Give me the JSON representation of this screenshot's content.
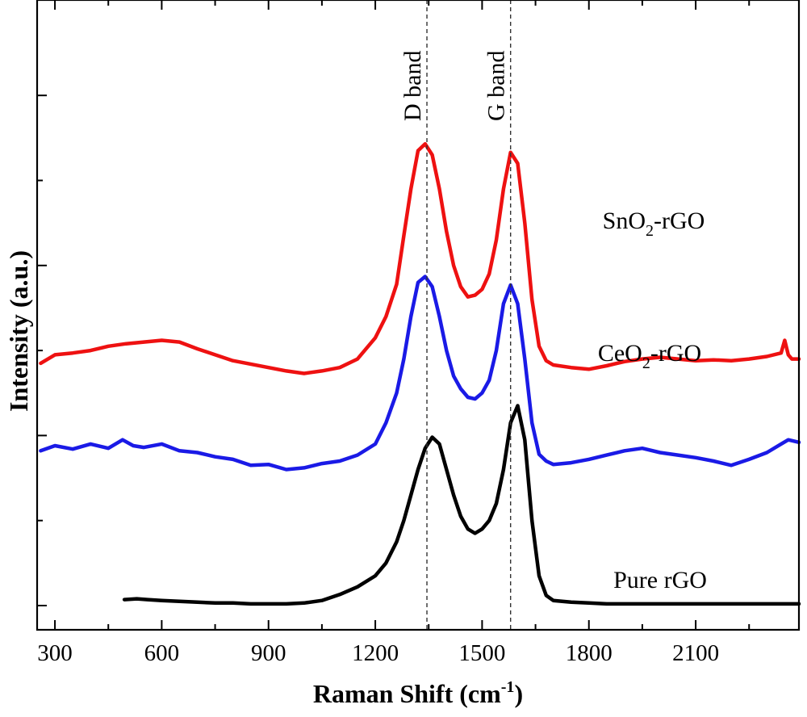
{
  "chart_data": {
    "type": "line",
    "xlabel_main": "Raman Shift (cm",
    "xlabel_sup": "-1",
    "xlabel_end": ")",
    "ylabel": "Intensity (a.u.)",
    "xlim": [
      250,
      2390
    ],
    "ylim": [
      0,
      6.6
    ],
    "xticks": [
      300,
      600,
      900,
      1200,
      1500,
      1800,
      2100
    ],
    "x_minor_ticks": [
      450,
      750,
      1050,
      1350,
      1650,
      1950,
      2250
    ],
    "y_ticks": [
      0,
      1,
      2,
      3,
      4,
      5,
      6
    ],
    "grid": false,
    "reference_lines": [
      {
        "label": "D band",
        "x": 1345
      },
      {
        "label": "G band",
        "x": 1580
      }
    ],
    "series": [
      {
        "name_main": "SnO",
        "name_sub": "2",
        "name_end": "-rGO",
        "color": "#ee1111",
        "x": [
          260,
          300,
          350,
          400,
          450,
          500,
          550,
          600,
          650,
          700,
          750,
          800,
          850,
          900,
          950,
          1000,
          1050,
          1100,
          1150,
          1200,
          1230,
          1260,
          1280,
          1300,
          1320,
          1340,
          1360,
          1380,
          1400,
          1420,
          1440,
          1460,
          1480,
          1500,
          1520,
          1540,
          1560,
          1580,
          1600,
          1620,
          1640,
          1660,
          1680,
          1700,
          1750,
          1800,
          1850,
          1900,
          1950,
          2000,
          2050,
          2100,
          2150,
          2200,
          2250,
          2300,
          2340,
          2350,
          2360,
          2370,
          2390
        ],
        "y": [
          2.85,
          2.95,
          2.97,
          3.0,
          3.05,
          3.08,
          3.1,
          3.12,
          3.1,
          3.02,
          2.95,
          2.88,
          2.84,
          2.8,
          2.76,
          2.73,
          2.76,
          2.8,
          2.9,
          3.15,
          3.4,
          3.78,
          4.35,
          4.9,
          5.35,
          5.43,
          5.3,
          4.9,
          4.4,
          4.0,
          3.75,
          3.63,
          3.65,
          3.72,
          3.9,
          4.3,
          4.9,
          5.33,
          5.2,
          4.5,
          3.6,
          3.05,
          2.88,
          2.83,
          2.8,
          2.78,
          2.82,
          2.87,
          2.9,
          2.92,
          2.9,
          2.88,
          2.89,
          2.88,
          2.9,
          2.93,
          2.97,
          3.12,
          2.95,
          2.9,
          2.9
        ]
      },
      {
        "name_main": "CeO",
        "name_sub": "2",
        "name_end": "-rGO",
        "color": "#1a1ae6",
        "x": [
          260,
          300,
          350,
          400,
          450,
          490,
          520,
          550,
          600,
          650,
          700,
          750,
          800,
          850,
          900,
          950,
          1000,
          1050,
          1100,
          1150,
          1200,
          1230,
          1260,
          1280,
          1300,
          1320,
          1340,
          1360,
          1380,
          1400,
          1420,
          1440,
          1460,
          1480,
          1500,
          1520,
          1540,
          1560,
          1580,
          1600,
          1620,
          1640,
          1660,
          1680,
          1700,
          1750,
          1800,
          1850,
          1900,
          1950,
          2000,
          2050,
          2100,
          2150,
          2200,
          2250,
          2300,
          2340,
          2360,
          2390
        ],
        "y": [
          1.82,
          1.88,
          1.84,
          1.9,
          1.85,
          1.95,
          1.88,
          1.86,
          1.9,
          1.82,
          1.8,
          1.75,
          1.72,
          1.65,
          1.66,
          1.6,
          1.62,
          1.67,
          1.7,
          1.77,
          1.9,
          2.15,
          2.5,
          2.9,
          3.4,
          3.8,
          3.87,
          3.75,
          3.4,
          3.0,
          2.7,
          2.55,
          2.45,
          2.43,
          2.5,
          2.65,
          3.0,
          3.55,
          3.77,
          3.55,
          2.9,
          2.15,
          1.78,
          1.7,
          1.66,
          1.68,
          1.72,
          1.77,
          1.82,
          1.85,
          1.8,
          1.77,
          1.74,
          1.7,
          1.65,
          1.72,
          1.8,
          1.9,
          1.95,
          1.92
        ]
      },
      {
        "name_main": "Pure rGO",
        "name_sub": "",
        "name_end": "",
        "color": "#000000",
        "x": [
          495,
          530,
          560,
          600,
          650,
          700,
          750,
          800,
          850,
          900,
          950,
          1000,
          1050,
          1100,
          1150,
          1200,
          1230,
          1260,
          1280,
          1300,
          1320,
          1340,
          1360,
          1380,
          1400,
          1420,
          1440,
          1460,
          1480,
          1500,
          1520,
          1540,
          1560,
          1580,
          1600,
          1620,
          1640,
          1660,
          1680,
          1700,
          1750,
          1800,
          1850,
          1900,
          1950,
          2000,
          2100,
          2200,
          2300,
          2390
        ],
        "y": [
          0.07,
          0.08,
          0.07,
          0.06,
          0.05,
          0.04,
          0.03,
          0.03,
          0.02,
          0.02,
          0.02,
          0.03,
          0.06,
          0.13,
          0.22,
          0.35,
          0.5,
          0.75,
          1.0,
          1.3,
          1.6,
          1.85,
          1.98,
          1.9,
          1.6,
          1.3,
          1.05,
          0.9,
          0.85,
          0.9,
          1.0,
          1.2,
          1.6,
          2.15,
          2.35,
          1.95,
          1.0,
          0.35,
          0.12,
          0.06,
          0.04,
          0.03,
          0.02,
          0.02,
          0.02,
          0.02,
          0.02,
          0.02,
          0.02,
          0.02
        ]
      }
    ]
  }
}
